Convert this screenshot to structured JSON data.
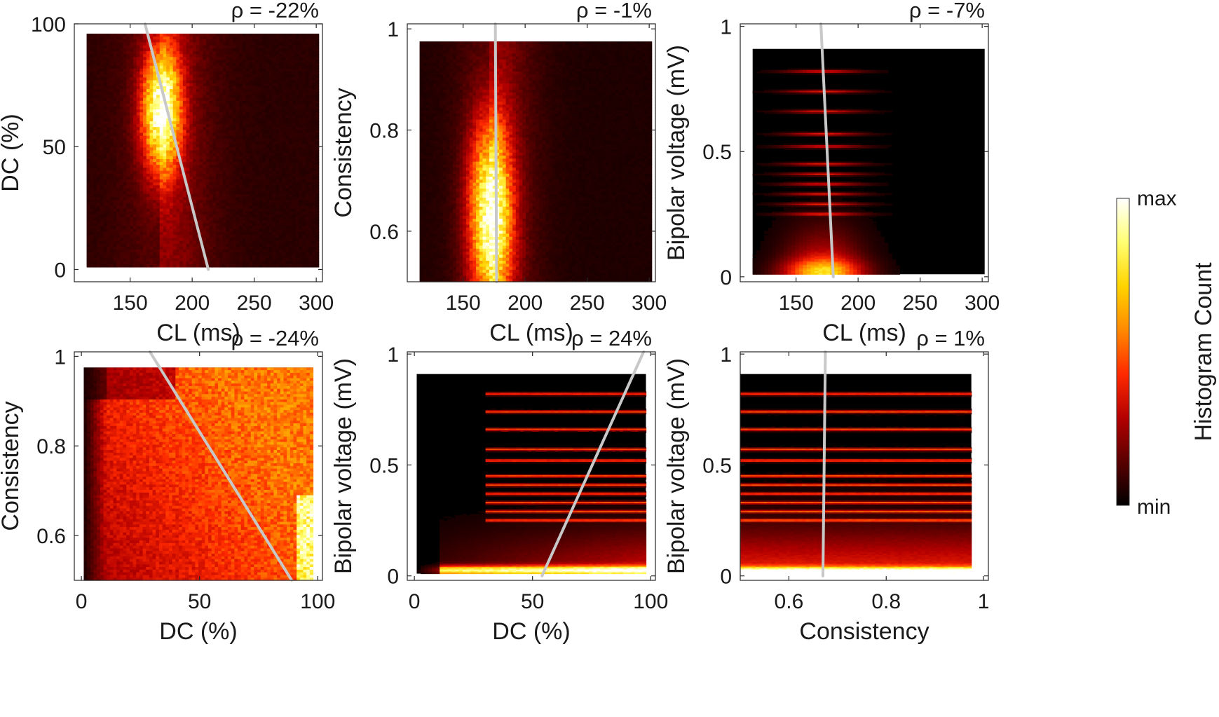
{
  "colormap": {
    "name": "hot",
    "stops": [
      "#000000",
      "#5a0000",
      "#b40000",
      "#ff2a00",
      "#ff8a00",
      "#ffd400",
      "#ffff73",
      "#ffffff"
    ]
  },
  "colorbar": {
    "max_label": "max",
    "min_label": "min",
    "title": "Histogram Count"
  },
  "chart_data": [
    {
      "id": "dc-vs-cl",
      "type": "heatmap",
      "xlabel": "CL (ms)",
      "ylabel": "DC (%)",
      "xlim": [
        105,
        305
      ],
      "ylim": [
        -5,
        100
      ],
      "xticks": [
        150,
        200,
        250,
        300
      ],
      "yticks": [
        0,
        50,
        100
      ],
      "ytick_labels": [
        "0",
        "50",
        "100"
      ],
      "data_extent": {
        "x": [
          115,
          302
        ],
        "y": [
          1,
          96
        ]
      },
      "fit_line": {
        "x": [
          162,
          213
        ],
        "y": [
          100,
          0
        ]
      },
      "rho_label": "ρ = -22%",
      "density": {
        "style": "blob",
        "center": [
          175,
          65
        ],
        "spread": [
          11,
          18
        ],
        "tail": 28,
        "bg": 0.07
      }
    },
    {
      "id": "consistency-vs-cl",
      "type": "heatmap",
      "xlabel": "CL (ms)",
      "ylabel": "Consistency",
      "xlim": [
        105,
        305
      ],
      "ylim": [
        0.5,
        1.01
      ],
      "xticks": [
        150,
        200,
        250,
        300
      ],
      "yticks": [
        0.6,
        0.8,
        1
      ],
      "ytick_labels": [
        "0.6",
        "0.8",
        "1"
      ],
      "data_extent": {
        "x": [
          115,
          302
        ],
        "y": [
          0.5,
          0.975
        ]
      },
      "fit_line": {
        "x": [
          176,
          177
        ],
        "y": [
          1.01,
          0.5
        ]
      },
      "rho_label": "ρ = -1%",
      "density": {
        "style": "blob",
        "center": [
          172,
          0.63
        ],
        "spread": [
          12,
          0.13
        ],
        "tail": 25,
        "bg": 0.05
      }
    },
    {
      "id": "voltage-vs-cl",
      "type": "heatmap",
      "xlabel": "CL (ms)",
      "ylabel": "Bipolar voltage (mV)",
      "xlim": [
        105,
        305
      ],
      "ylim": [
        -0.02,
        1.01
      ],
      "xticks": [
        150,
        200,
        250,
        300
      ],
      "yticks": [
        0,
        0.5,
        1
      ],
      "ytick_labels": [
        "0",
        "0.5",
        "1"
      ],
      "data_extent": {
        "x": [
          115,
          302
        ],
        "y": [
          0.01,
          0.91
        ]
      },
      "fit_line": {
        "x": [
          170,
          180
        ],
        "y": [
          1.01,
          0
        ]
      },
      "rho_label": "ρ = -7%",
      "density": {
        "style": "bands-x",
        "center": 172,
        "spread": 22,
        "bg": 0.02,
        "bands": [
          0.82,
          0.74,
          0.66,
          0.57,
          0.52,
          0.45,
          0.41,
          0.37,
          0.33,
          0.29,
          0.25
        ]
      }
    },
    {
      "id": "consistency-vs-dc",
      "type": "heatmap",
      "xlabel": "DC (%)",
      "ylabel": "Consistency",
      "xlim": [
        -3,
        102
      ],
      "ylim": [
        0.5,
        1.01
      ],
      "xticks": [
        0,
        50,
        100
      ],
      "xtick_labels": [
        "0",
        "50",
        "100"
      ],
      "yticks": [
        0.6,
        0.8,
        1
      ],
      "ytick_labels": [
        "0.6",
        "0.8",
        "1"
      ],
      "data_extent": {
        "x": [
          1,
          98
        ],
        "y": [
          0.5,
          0.975
        ]
      },
      "fit_line": {
        "x": [
          29,
          89
        ],
        "y": [
          1.01,
          0.5
        ]
      },
      "rho_label": "ρ = -24%",
      "density": {
        "style": "diagonal",
        "bg": 0.04
      }
    },
    {
      "id": "voltage-vs-dc",
      "type": "heatmap",
      "xlabel": "DC (%)",
      "ylabel": "Bipolar voltage (mV)",
      "xlim": [
        -3,
        102
      ],
      "ylim": [
        -0.02,
        1.01
      ],
      "xticks": [
        0,
        50,
        100
      ],
      "xtick_labels": [
        "0",
        "50",
        "100"
      ],
      "yticks": [
        0,
        0.5,
        1
      ],
      "ytick_labels": [
        "0",
        "0.5",
        "1"
      ],
      "data_extent": {
        "x": [
          1,
          98
        ],
        "y": [
          0.01,
          0.91
        ]
      },
      "fit_line": {
        "x": [
          54,
          97
        ],
        "y": [
          0,
          1.01
        ]
      },
      "rho_label": "ρ = 24%",
      "density": {
        "style": "bands-ramp",
        "start": 30,
        "bg": 0.02,
        "bands": [
          0.82,
          0.74,
          0.66,
          0.57,
          0.52,
          0.45,
          0.41,
          0.37,
          0.33,
          0.29,
          0.25
        ]
      }
    },
    {
      "id": "voltage-vs-consistency",
      "type": "heatmap",
      "xlabel": "Consistency",
      "ylabel": "Bipolar voltage (mV)",
      "xlim": [
        0.5,
        1.01
      ],
      "ylim": [
        -0.02,
        1.01
      ],
      "xticks": [
        0.6,
        0.8,
        1
      ],
      "xtick_labels": [
        "0.6",
        "0.8",
        "1"
      ],
      "yticks": [
        0,
        0.5,
        1
      ],
      "ytick_labels": [
        "0",
        "0.5",
        "1"
      ],
      "data_extent": {
        "x": [
          0.5,
          0.975
        ],
        "y": [
          0.01,
          0.91
        ]
      },
      "fit_line": {
        "x": [
          0.67,
          0.675
        ],
        "y": [
          0,
          1.01
        ]
      },
      "rho_label": "ρ = 1%",
      "density": {
        "style": "bands-flat",
        "bg": 0.03,
        "bands": [
          0.82,
          0.74,
          0.66,
          0.57,
          0.52,
          0.45,
          0.41,
          0.37,
          0.33,
          0.29,
          0.25
        ]
      }
    }
  ]
}
